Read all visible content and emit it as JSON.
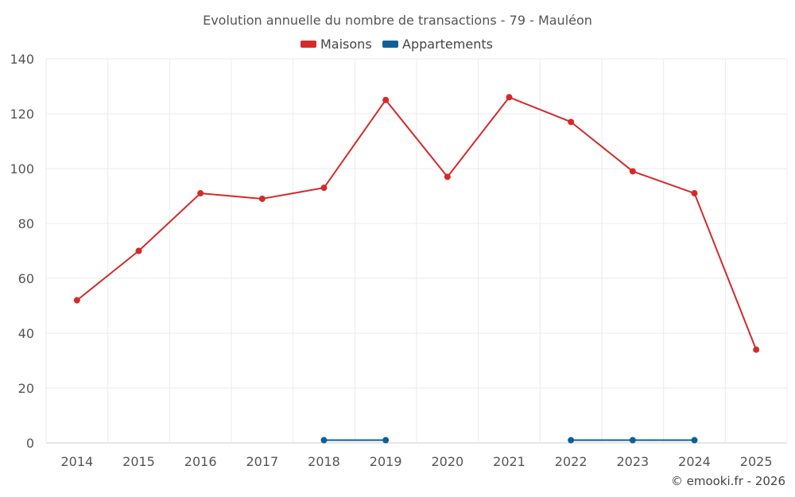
{
  "chart_data": {
    "type": "line",
    "title": "Evolution annuelle du nombre de transactions - 79 - Mauléon",
    "categories": [
      "2014",
      "2015",
      "2016",
      "2017",
      "2018",
      "2019",
      "2020",
      "2021",
      "2022",
      "2023",
      "2024",
      "2025"
    ],
    "ylim": [
      0,
      140
    ],
    "yticks": [
      0,
      20,
      40,
      60,
      80,
      100,
      120,
      140
    ],
    "grid": true,
    "legend_position": "top-center",
    "series": [
      {
        "name": "Maisons",
        "color": "#d42a2a",
        "values": [
          52,
          70,
          91,
          89,
          93,
          125,
          97,
          126,
          117,
          99,
          91,
          34
        ]
      },
      {
        "name": "Appartements",
        "color": "#0e5f98",
        "values": [
          null,
          null,
          null,
          null,
          1,
          1,
          null,
          null,
          1,
          1,
          1,
          null
        ]
      }
    ],
    "credit": "© emooki.fr - 2026"
  }
}
